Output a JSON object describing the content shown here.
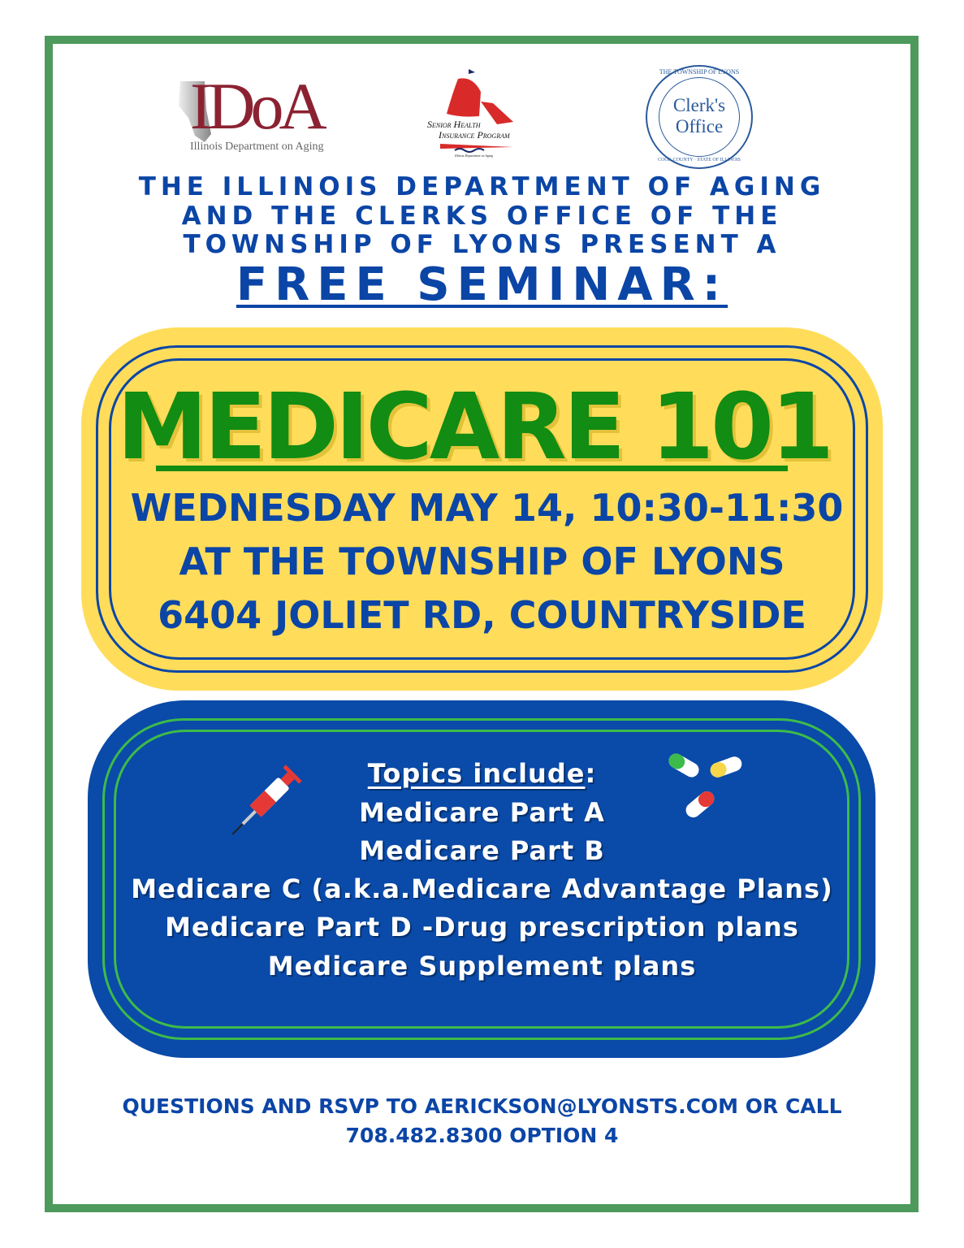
{
  "logos": {
    "idoa": {
      "letters": "IDoA",
      "caption": "Illinois Department on Aging",
      "color": "#8b2232"
    },
    "ship": {
      "line1": "Senior Health",
      "line2": "Insurance Program",
      "caption": "Illinois Department on Aging",
      "color": "#d92a2a"
    },
    "seal": {
      "center1": "Clerk's",
      "center2": "Office",
      "ring_top": "THE TOWNSHIP OF LYONS",
      "ring_bottom": "COOK COUNTY · STATE OF ILLINOIS",
      "color": "#2a5a9c"
    }
  },
  "heading": {
    "line1": "THE ILLINOIS DEPARTMENT OF AGING",
    "line2": "AND THE CLERKS OFFICE OF THE",
    "line3": "TOWNSHIP OF LYONS PRESENT A",
    "line4": "FREE SEMINAR:"
  },
  "event": {
    "title": "MEDICARE 101",
    "date": "WEDNESDAY MAY 14, 10:30-11:30",
    "place": "AT THE TOWNSHIP OF LYONS",
    "address": "6404 JOLIET RD, COUNTRYSIDE"
  },
  "topics": {
    "heading": "Topics include",
    "colon": ":",
    "items": [
      "Medicare Part A",
      "Medicare Part B",
      "Medicare C (a.k.a.Medicare Advantage Plans)",
      "Medicare Part D -Drug prescription plans",
      "Medicare Supplement plans"
    ]
  },
  "footer": {
    "line1": "QUESTIONS AND RSVP TO AERICKSON@LYONSTS.COM OR CALL",
    "line2": "708.482.8300 OPTION 4"
  },
  "colors": {
    "border": "#4e9a5c",
    "blue": "#0b45a6",
    "yellow": "#ffdd5a",
    "green": "#128c12"
  }
}
